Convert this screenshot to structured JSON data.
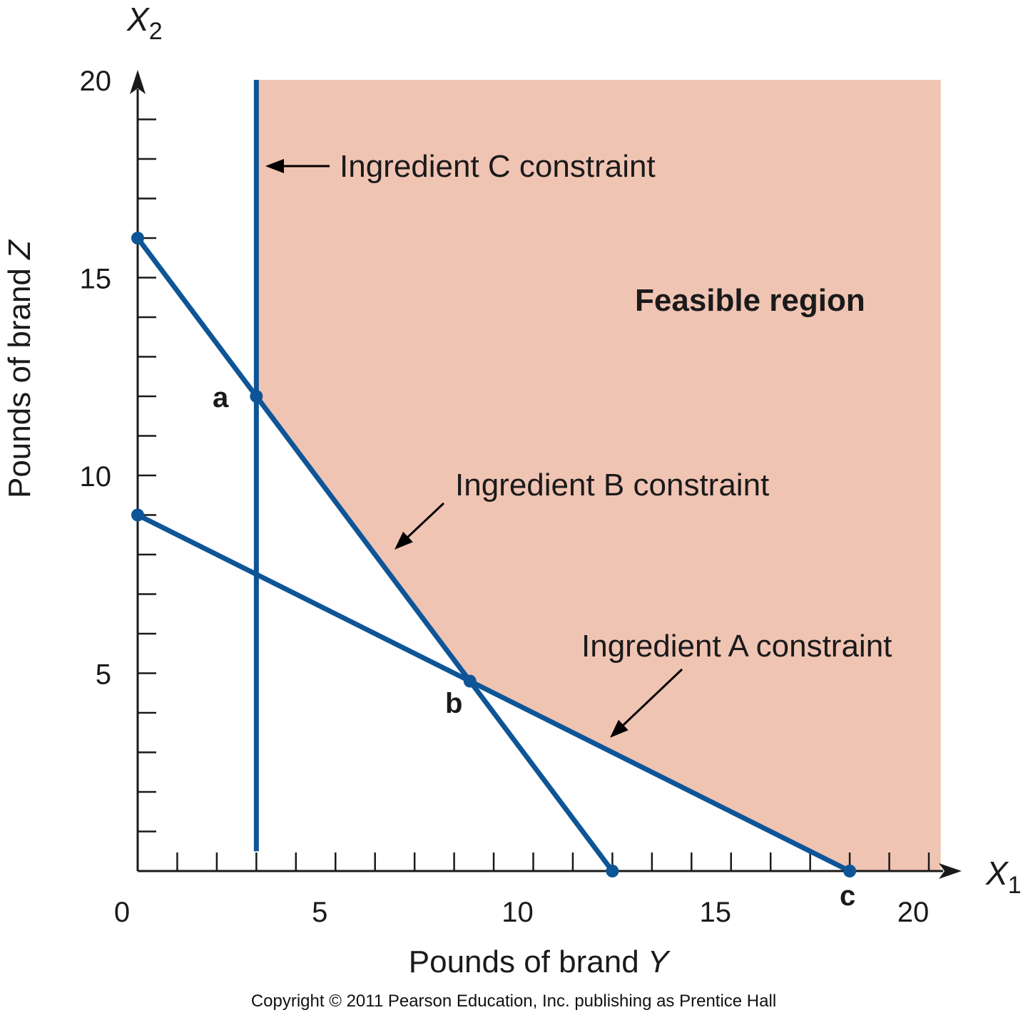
{
  "chart_data": {
    "type": "line",
    "x_axis_variable": "X",
    "x_axis_variable_sub": "1",
    "y_axis_variable": "X",
    "y_axis_variable_sub": "2",
    "xlabel_prefix": "Pounds of brand ",
    "xlabel_var": "Y",
    "ylabel_prefix": "Pounds of brand ",
    "ylabel_var": "Z",
    "xlim": [
      0,
      20
    ],
    "ylim": [
      0,
      20
    ],
    "x_ticks": [
      "0",
      "5",
      "10",
      "15",
      "20"
    ],
    "y_ticks": [
      "5",
      "10",
      "15",
      "20"
    ],
    "minor_tick_step": 1,
    "grid": false,
    "series": [
      {
        "name": "Ingredient C constraint",
        "x": [
          3,
          3
        ],
        "y": [
          0.5,
          20
        ]
      },
      {
        "name": "Ingredient B constraint",
        "x": [
          0,
          12
        ],
        "y": [
          16,
          0
        ]
      },
      {
        "name": "Ingredient A constraint",
        "x": [
          0,
          18
        ],
        "y": [
          9,
          0
        ]
      }
    ],
    "endpoints": [
      {
        "x": 0,
        "y": 16
      },
      {
        "x": 0,
        "y": 9
      },
      {
        "x": 12,
        "y": 0
      }
    ],
    "corner_points": [
      {
        "label": "a",
        "x": 3,
        "y": 12
      },
      {
        "label": "b",
        "x": 8.4,
        "y": 4.8
      },
      {
        "label": "c",
        "x": 18,
        "y": 0
      }
    ],
    "feasible_region": {
      "label": "Feasible region",
      "vertices": [
        {
          "x": 3,
          "y": 20
        },
        {
          "x": 20.3,
          "y": 20
        },
        {
          "x": 20.3,
          "y": 0
        },
        {
          "x": 18,
          "y": 0
        },
        {
          "x": 8.4,
          "y": 4.8
        },
        {
          "x": 3,
          "y": 12
        }
      ]
    },
    "annotations": {
      "c_label": "Ingredient C constraint",
      "b_label": "Ingredient B constraint",
      "a_label": "Ingredient A constraint"
    },
    "colors": {
      "line": "#0e5597",
      "region": "#f0c4b3",
      "axis": "#1a1a1a"
    }
  },
  "footer": {
    "copyright": "Copyright © 2011 Pearson Education, Inc. publishing as Prentice Hall"
  }
}
